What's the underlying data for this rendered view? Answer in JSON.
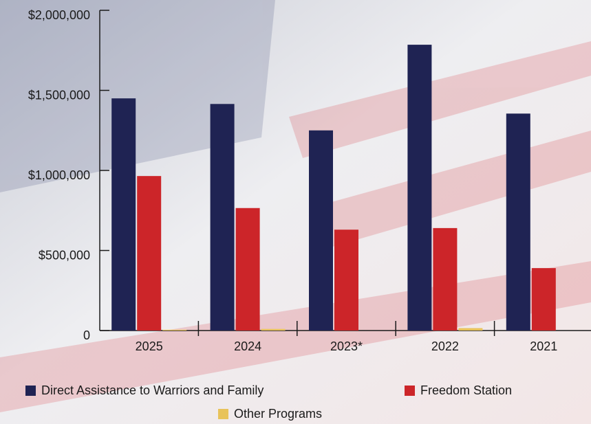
{
  "chart_data": {
    "type": "bar",
    "categories": [
      "2025",
      "2024",
      "2023*",
      "2022",
      "2021"
    ],
    "series": [
      {
        "name": "Direct Assistance to Warriors and Family",
        "color": "#1f2353",
        "values": [
          1450000,
          1415000,
          1250000,
          1785000,
          1355000
        ]
      },
      {
        "name": "Freedom Station",
        "color": "#cc2529",
        "values": [
          965000,
          765000,
          630000,
          640000,
          390000
        ]
      },
      {
        "name": "Other Programs",
        "color": "#e8c35a",
        "values": [
          5000,
          10000,
          0,
          15000,
          0
        ]
      }
    ],
    "ylim": [
      0,
      2000000
    ],
    "yticks": [
      0,
      {
        "value": 500000,
        "label": "$500,000"
      },
      {
        "value": 1000000,
        "label": "$1,000,000"
      },
      {
        "value": 1500000,
        "label": "$1,500,000"
      },
      {
        "value": 2000000,
        "label": "$2,000,000"
      }
    ]
  }
}
